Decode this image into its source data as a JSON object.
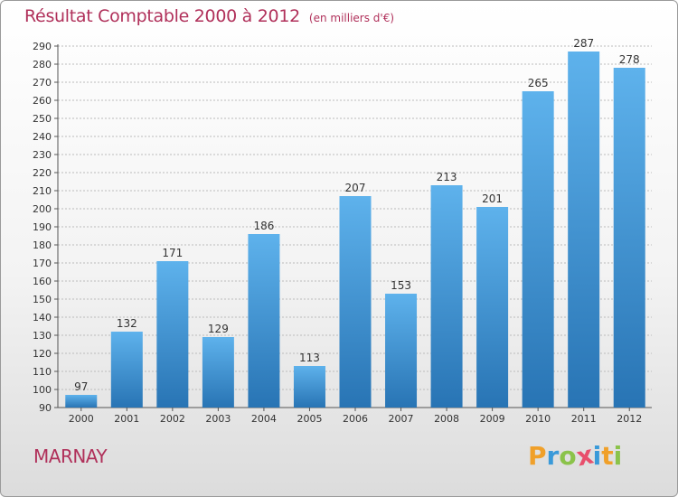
{
  "title": "Résultat Comptable 2000 à 2012",
  "subtitle": "(en milliers d'€)",
  "town": "MARNAY",
  "logo": {
    "letters": [
      {
        "char": "P",
        "color": "#f0a02a"
      },
      {
        "char": "r",
        "color": "#3a9ad9"
      },
      {
        "char": "o",
        "color": "#8bc34a"
      },
      {
        "char": "x",
        "color": "#e84f6c"
      },
      {
        "char": "i",
        "color": "#3a9ad9"
      },
      {
        "char": "t",
        "color": "#f0a02a"
      },
      {
        "char": "i",
        "color": "#8bc34a"
      }
    ]
  },
  "colors": {
    "accent": "#b0305a",
    "bar_top": "#5eb2ec",
    "bar_bottom": "#2874b4",
    "grid": "#bbbbbb"
  },
  "chart_data": {
    "type": "bar",
    "title": "Résultat Comptable 2000 à 2012",
    "subtitle": "(en milliers d'€)",
    "xlabel": "",
    "ylabel": "",
    "categories": [
      "2000",
      "2001",
      "2002",
      "2003",
      "2004",
      "2005",
      "2006",
      "2007",
      "2008",
      "2009",
      "2010",
      "2011",
      "2012"
    ],
    "values": [
      97,
      132,
      171,
      129,
      186,
      113,
      207,
      153,
      213,
      201,
      265,
      287,
      278
    ],
    "ylim": [
      90,
      290
    ],
    "ytick_step": 10,
    "grid": true,
    "data_labels": true
  }
}
